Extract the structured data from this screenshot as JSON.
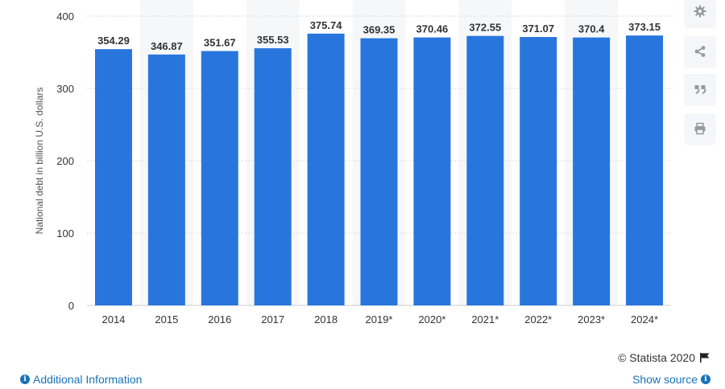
{
  "chart_data": {
    "type": "bar",
    "categories": [
      "2014",
      "2015",
      "2016",
      "2017",
      "2018",
      "2019*",
      "2020*",
      "2021*",
      "2022*",
      "2023*",
      "2024*"
    ],
    "values": [
      354.29,
      346.87,
      351.67,
      355.53,
      375.74,
      369.35,
      370.46,
      372.55,
      371.07,
      370.4,
      373.15
    ],
    "value_labels": [
      "354.29",
      "346.87",
      "351.67",
      "355.53",
      "375.74",
      "369.35",
      "370.46",
      "372.55",
      "371.07",
      "370.4",
      "373.15"
    ],
    "ylabel": "National debt in billion U.S. dollars",
    "ylim": [
      0,
      400
    ],
    "yticks": [
      0,
      100,
      200,
      300,
      400
    ],
    "grid": true,
    "bar_color": "#2876dd",
    "band_color": "#f6f7f9"
  },
  "footer": {
    "additional_info": "Additional Information",
    "show_source": "Show source",
    "credit": "© Statista 2020"
  },
  "toolbar": {
    "icons": [
      "gear-icon",
      "share-icon",
      "quote-icon",
      "print-icon"
    ]
  }
}
